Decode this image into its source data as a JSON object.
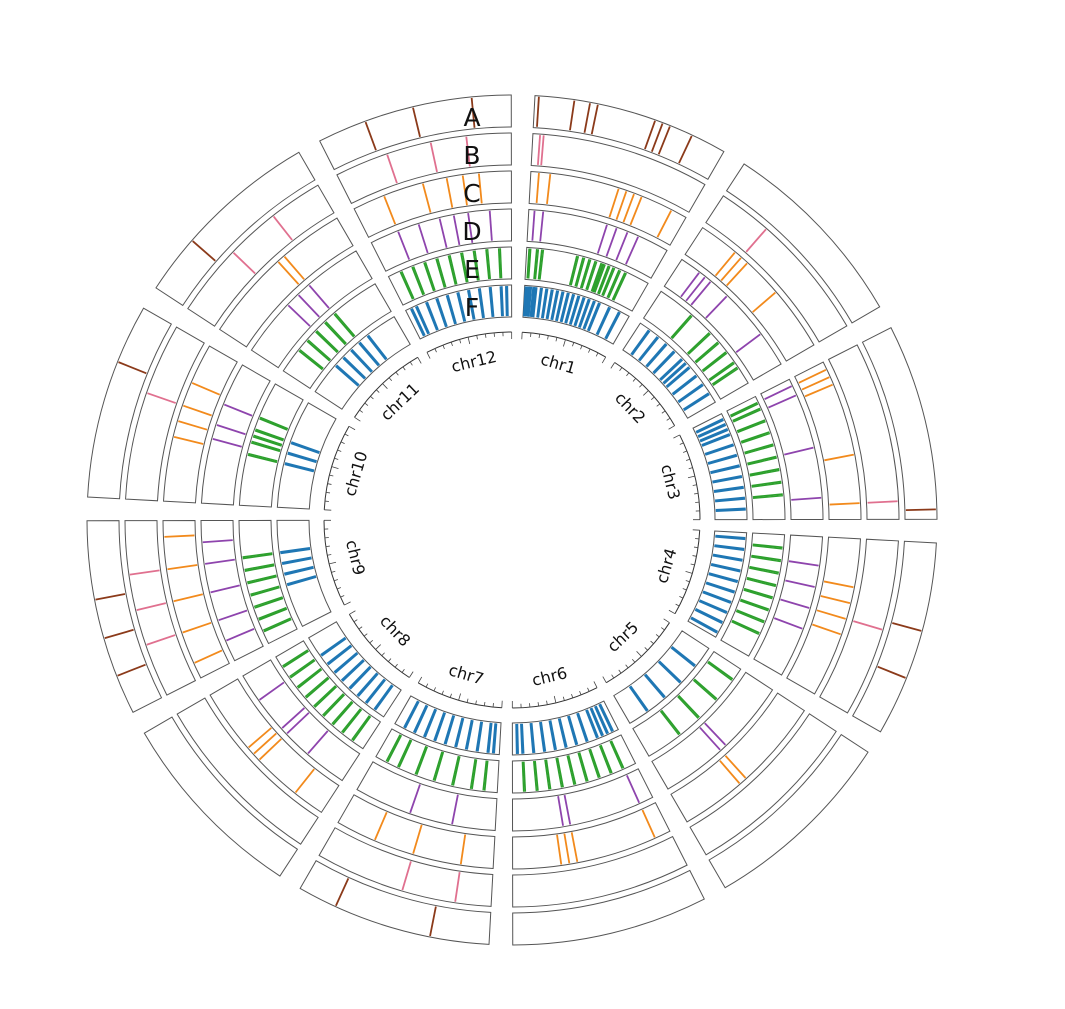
{
  "track_letters": [
    "A",
    "B",
    "C",
    "D",
    "E",
    "F"
  ],
  "track_colors": [
    "#8b3a1a",
    "#e0708f",
    "#f28a1c",
    "#8e44ad",
    "#2ca02c",
    "#1f77b4"
  ],
  "chromosomes": [
    {
      "name": "chr1",
      "marks": [
        [
          0.02,
          0.2,
          0.28,
          0.32,
          0.62,
          0.66,
          0.7,
          0.82
        ],
        [
          0.04,
          0.06
        ],
        [
          0.05,
          0.12,
          0.55,
          0.6,
          0.65,
          0.7,
          0.9
        ],
        [
          0.04,
          0.1,
          0.55,
          0.62,
          0.7,
          0.78
        ],
        [
          0.02,
          0.08,
          0.12,
          0.4,
          0.45,
          0.5,
          0.55,
          0.6,
          0.62,
          0.66,
          0.7,
          0.75,
          0.8
        ],
        [
          0.01,
          0.03,
          0.05,
          0.08,
          0.1,
          0.15,
          0.2,
          0.25,
          0.3,
          0.35,
          0.4,
          0.45,
          0.5,
          0.55,
          0.6,
          0.65,
          0.7,
          0.8,
          0.9
        ]
      ]
    },
    {
      "name": "chr2",
      "marks": [
        [],
        [
          0.3
        ],
        [
          0.25,
          0.3,
          0.35,
          0.6
        ],
        [
          0.15,
          0.2,
          0.25,
          0.4,
          0.75
        ],
        [
          0.3,
          0.5,
          0.6,
          0.7,
          0.8,
          0.85
        ],
        [
          0.1,
          0.2,
          0.3,
          0.4,
          0.5,
          0.55,
          0.6,
          0.7,
          0.8,
          0.9
        ]
      ]
    },
    {
      "name": "chr3",
      "marks": [
        [
          0.95
        ],
        [
          0.9
        ],
        [
          0.05,
          0.1,
          0.15,
          0.6,
          0.9
        ],
        [
          0.05,
          0.12,
          0.5,
          0.85
        ],
        [
          0.05,
          0.1,
          0.2,
          0.3,
          0.4,
          0.5,
          0.6,
          0.7,
          0.8
        ],
        [
          0.05,
          0.1,
          0.15,
          0.2,
          0.3,
          0.4,
          0.5,
          0.6,
          0.7,
          0.8,
          0.9
        ]
      ]
    },
    {
      "name": "chr4",
      "marks": [
        [
          0.45,
          0.7
        ],
        [
          0.5
        ],
        [
          0.3,
          0.4,
          0.5,
          0.6
        ],
        [
          0.2,
          0.35,
          0.5,
          0.65
        ],
        [
          0.1,
          0.2,
          0.3,
          0.4,
          0.5,
          0.6,
          0.7,
          0.8
        ],
        [
          0.05,
          0.15,
          0.25,
          0.35,
          0.45,
          0.55,
          0.65,
          0.75,
          0.85,
          0.95
        ]
      ]
    },
    {
      "name": "chr5",
      "marks": [
        [],
        [],
        [
          0.55,
          0.6
        ],
        [
          0.5,
          0.55
        ],
        [
          0.1,
          0.3,
          0.5,
          0.7
        ],
        [
          0.2,
          0.4,
          0.6,
          0.8
        ]
      ]
    },
    {
      "name": "chr6",
      "marks": [
        [],
        [],
        [
          0.1,
          0.6,
          0.65,
          0.7
        ],
        [
          0.1,
          0.6,
          0.65
        ],
        [
          0.1,
          0.2,
          0.3,
          0.4,
          0.5,
          0.6,
          0.7,
          0.8,
          0.9
        ],
        [
          0.05,
          0.1,
          0.15,
          0.2,
          0.3,
          0.4,
          0.5,
          0.6,
          0.7,
          0.8,
          0.9,
          0.95
        ]
      ]
    },
    {
      "name": "chr7",
      "marks": [
        [
          0.3,
          0.8
        ],
        [
          0.2,
          0.5
        ],
        [
          0.2,
          0.5,
          0.75
        ],
        [
          0.3,
          0.6
        ],
        [
          0.1,
          0.2,
          0.35,
          0.5,
          0.65,
          0.8,
          0.9
        ],
        [
          0.05,
          0.1,
          0.2,
          0.3,
          0.4,
          0.5,
          0.6,
          0.7,
          0.8,
          0.9
        ]
      ]
    },
    {
      "name": "chr8",
      "marks": [
        [],
        [],
        [
          0.2,
          0.5,
          0.55,
          0.6
        ],
        [
          0.3,
          0.5,
          0.55,
          0.8
        ],
        [
          0.1,
          0.2,
          0.3,
          0.4,
          0.5,
          0.6,
          0.7,
          0.8,
          0.9
        ],
        [
          0.1,
          0.2,
          0.3,
          0.4,
          0.5,
          0.6,
          0.7,
          0.8
        ]
      ]
    },
    {
      "name": "chr9",
      "marks": [
        [
          0.2,
          0.4,
          0.6
        ],
        [
          0.3,
          0.5,
          0.7
        ],
        [
          0.1,
          0.3,
          0.5,
          0.7,
          0.9
        ],
        [
          0.15,
          0.3,
          0.5,
          0.7,
          0.85
        ],
        [
          0.1,
          0.2,
          0.3,
          0.4,
          0.5,
          0.6,
          0.7
        ],
        [
          0.4,
          0.5,
          0.6,
          0.7
        ]
      ]
    },
    {
      "name": "chr10",
      "marks": [
        [
          0.7
        ],
        [
          0.6
        ],
        [
          0.4,
          0.5,
          0.6,
          0.75
        ],
        [
          0.45,
          0.55,
          0.7
        ],
        [
          0.4,
          0.5,
          0.55,
          0.6,
          0.7
        ],
        [
          0.4,
          0.5,
          0.6
        ]
      ]
    },
    {
      "name": "chr11",
      "marks": [
        [
          0.3
        ],
        [
          0.4,
          0.7
        ],
        [
          0.55,
          0.6
        ],
        [
          0.4,
          0.5,
          0.6
        ],
        [
          0.2,
          0.3,
          0.4,
          0.5,
          0.6
        ],
        [
          0.3,
          0.4,
          0.5,
          0.6,
          0.7
        ]
      ]
    },
    {
      "name": "chr12",
      "marks": [
        [
          0.25,
          0.5,
          0.8
        ],
        [
          0.3,
          0.55,
          0.75
        ],
        [
          0.2,
          0.45,
          0.6,
          0.7,
          0.8
        ],
        [
          0.2,
          0.35,
          0.5,
          0.6,
          0.7,
          0.85
        ],
        [
          0.1,
          0.2,
          0.3,
          0.4,
          0.5,
          0.6,
          0.7,
          0.8,
          0.9
        ],
        [
          0.05,
          0.1,
          0.2,
          0.3,
          0.4,
          0.5,
          0.6,
          0.7,
          0.8,
          0.9,
          0.95
        ]
      ]
    }
  ]
}
